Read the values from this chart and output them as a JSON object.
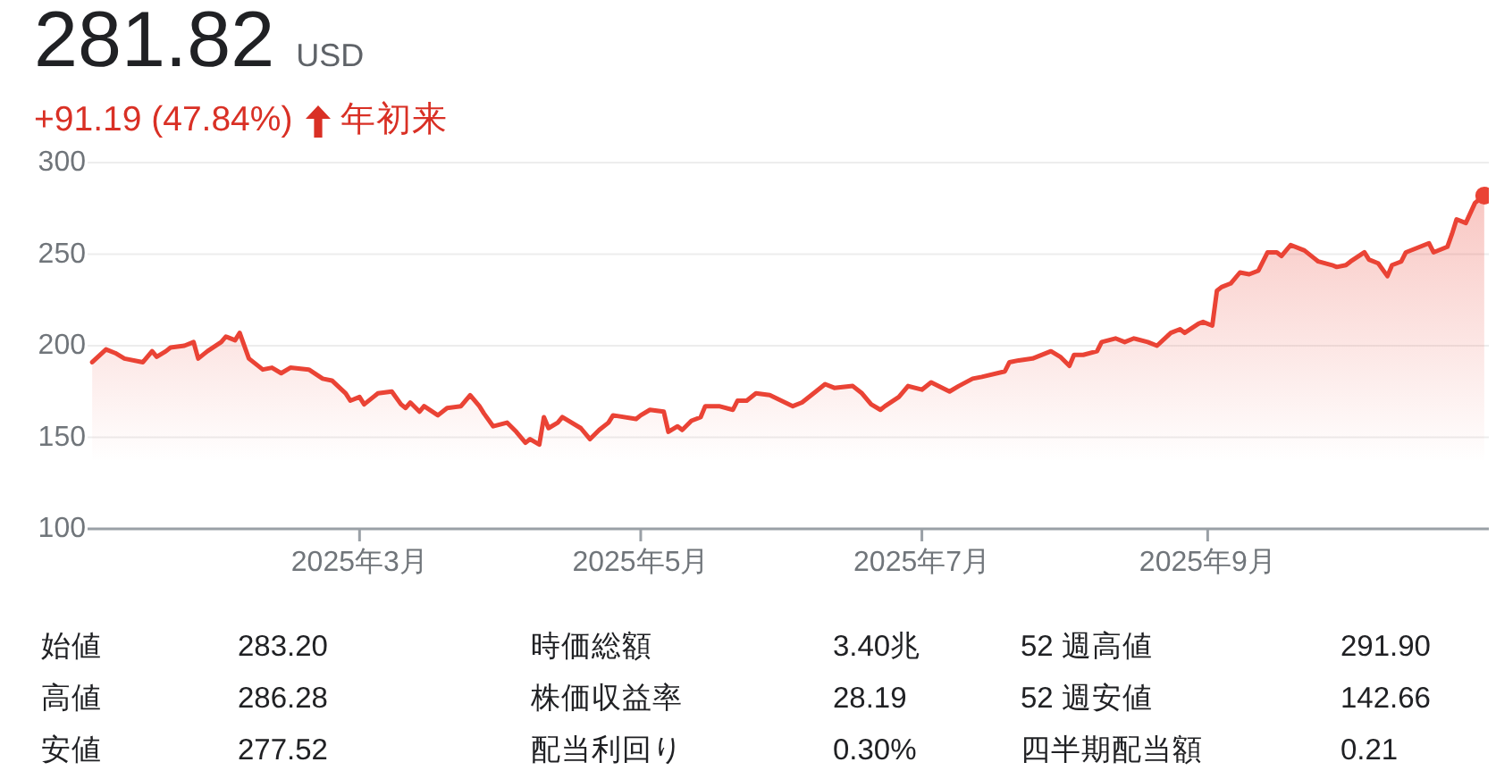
{
  "chart_data": {
    "type": "area",
    "title": "281.82",
    "subtitle": "USD",
    "annotations": [
      "+91.19 (47.84%)",
      "年初来",
      "始値",
      "283.20",
      "時価総額",
      "3.40兆",
      "52 週高値",
      "291.90",
      "高値",
      "286.28",
      "株価収益率",
      "28.19",
      "52 週安値",
      "142.66",
      "安値",
      "277.52",
      "配当利回り",
      "0.30%",
      "四半期配当額",
      "0.21"
    ],
    "x": [
      "2025-01-02",
      "2025-01-05",
      "2025-01-07",
      "2025-01-09",
      "2025-01-13",
      "2025-01-15",
      "2025-01-16",
      "2025-01-18",
      "2025-01-19",
      "2025-01-22",
      "2025-01-24",
      "2025-01-25",
      "2025-01-27",
      "2025-01-30",
      "2025-01-31",
      "2025-02-02",
      "2025-02-03",
      "2025-02-05",
      "2025-02-08",
      "2025-02-10",
      "2025-02-12",
      "2025-02-14",
      "2025-02-18",
      "2025-02-21",
      "2025-02-23",
      "2025-02-26",
      "2025-02-27",
      "2025-03-01",
      "2025-03-02",
      "2025-03-04",
      "2025-03-05",
      "2025-03-08",
      "2025-03-10",
      "2025-03-11",
      "2025-03-12",
      "2025-03-14",
      "2025-03-15",
      "2025-03-18",
      "2025-03-20",
      "2025-03-23",
      "2025-03-25",
      "2025-03-27",
      "2025-03-28",
      "2025-03-30",
      "2025-04-02",
      "2025-04-04",
      "2025-04-06",
      "2025-04-07",
      "2025-04-09",
      "2025-04-10",
      "2025-04-11",
      "2025-04-13",
      "2025-04-14",
      "2025-04-18",
      "2025-04-20",
      "2025-04-22",
      "2025-04-24",
      "2025-04-25",
      "2025-04-30",
      "2025-05-01",
      "2025-05-03",
      "2025-05-06",
      "2025-05-07",
      "2025-05-09",
      "2025-05-10",
      "2025-05-12",
      "2025-05-14",
      "2025-05-15",
      "2025-05-18",
      "2025-05-21",
      "2025-05-22",
      "2025-05-24",
      "2025-05-26",
      "2025-05-29",
      "2025-06-03",
      "2025-06-05",
      "2025-06-08",
      "2025-06-10",
      "2025-06-12",
      "2025-06-16",
      "2025-06-18",
      "2025-06-20",
      "2025-06-22",
      "2025-06-23",
      "2025-06-26",
      "2025-06-28",
      "2025-07-01",
      "2025-07-03",
      "2025-07-07",
      "2025-07-09",
      "2025-07-12",
      "2025-07-14",
      "2025-07-19",
      "2025-07-20",
      "2025-07-22",
      "2025-07-25",
      "2025-07-29",
      "2025-07-31",
      "2025-08-02",
      "2025-08-03",
      "2025-08-05",
      "2025-08-08",
      "2025-08-09",
      "2025-08-12",
      "2025-08-14",
      "2025-08-16",
      "2025-08-19",
      "2025-08-21",
      "2025-08-24",
      "2025-08-26",
      "2025-08-27",
      "2025-08-30",
      "2025-08-31",
      "2025-09-02",
      "2025-09-03",
      "2025-09-04",
      "2025-09-06",
      "2025-09-08",
      "2025-09-10",
      "2025-09-12",
      "2025-09-14",
      "2025-09-16",
      "2025-09-17",
      "2025-09-19",
      "2025-09-22",
      "2025-09-24",
      "2025-09-25",
      "2025-09-28",
      "2025-09-29",
      "2025-10-01",
      "2025-10-02",
      "2025-10-05",
      "2025-10-06",
      "2025-10-08",
      "2025-10-10",
      "2025-10-11",
      "2025-10-13",
      "2025-10-14",
      "2025-10-19",
      "2025-10-20",
      "2025-10-23",
      "2025-10-24",
      "2025-10-25",
      "2025-10-27",
      "2025-10-29",
      "2025-10-31"
    ],
    "series": [
      {
        "color": "#ea4335",
        "values": [
          191,
          198,
          196,
          193,
          191,
          197,
          194,
          197,
          199,
          200,
          202,
          193,
          197,
          202,
          205,
          203,
          207,
          193,
          187,
          188,
          185,
          188,
          187,
          182,
          181,
          174,
          170,
          172,
          168,
          172,
          174,
          175,
          168,
          166,
          169,
          164,
          167,
          162,
          166,
          167,
          173,
          167,
          163,
          156,
          158,
          153,
          147,
          149,
          146,
          161,
          155,
          158,
          161,
          155,
          149,
          154,
          158,
          162,
          160,
          162,
          165,
          164,
          153,
          156,
          154,
          159,
          161,
          167,
          167,
          165,
          170,
          170,
          174,
          173,
          167,
          169,
          175,
          179,
          177,
          178,
          174,
          168,
          165,
          167,
          172,
          178,
          176,
          180,
          175,
          178,
          182,
          183,
          186,
          191,
          192,
          193,
          197,
          194,
          189,
          195,
          195,
          197,
          202,
          204,
          202,
          204,
          202,
          200,
          207,
          209,
          207,
          212,
          213,
          211,
          230,
          232,
          234,
          240,
          239,
          241,
          251,
          251,
          249,
          255,
          252,
          248,
          246,
          244,
          243,
          244,
          246,
          251,
          247,
          245,
          238,
          244,
          246,
          251,
          256,
          251,
          254,
          261,
          269,
          267,
          278,
          282
        ]
      },
      {
        "type": "scatter",
        "color": "#ea4335",
        "marker": "circle",
        "x": [
          "2025-10-31"
        ],
        "values": [
          282
        ]
      }
    ],
    "xlim": [
      "2025-01-01",
      "2025-11-01"
    ],
    "xticks": [
      {
        "value": "2025-03-01",
        "label": "2025年3月"
      },
      {
        "value": "2025-05-01",
        "label": "2025年5月"
      },
      {
        "value": "2025-07-01",
        "label": "2025年7月"
      },
      {
        "value": "2025-09-01",
        "label": "2025年9月"
      }
    ],
    "ylim": [
      100,
      300
    ],
    "yticks": [
      100,
      150,
      200,
      250,
      300
    ],
    "grid": "y"
  }
}
